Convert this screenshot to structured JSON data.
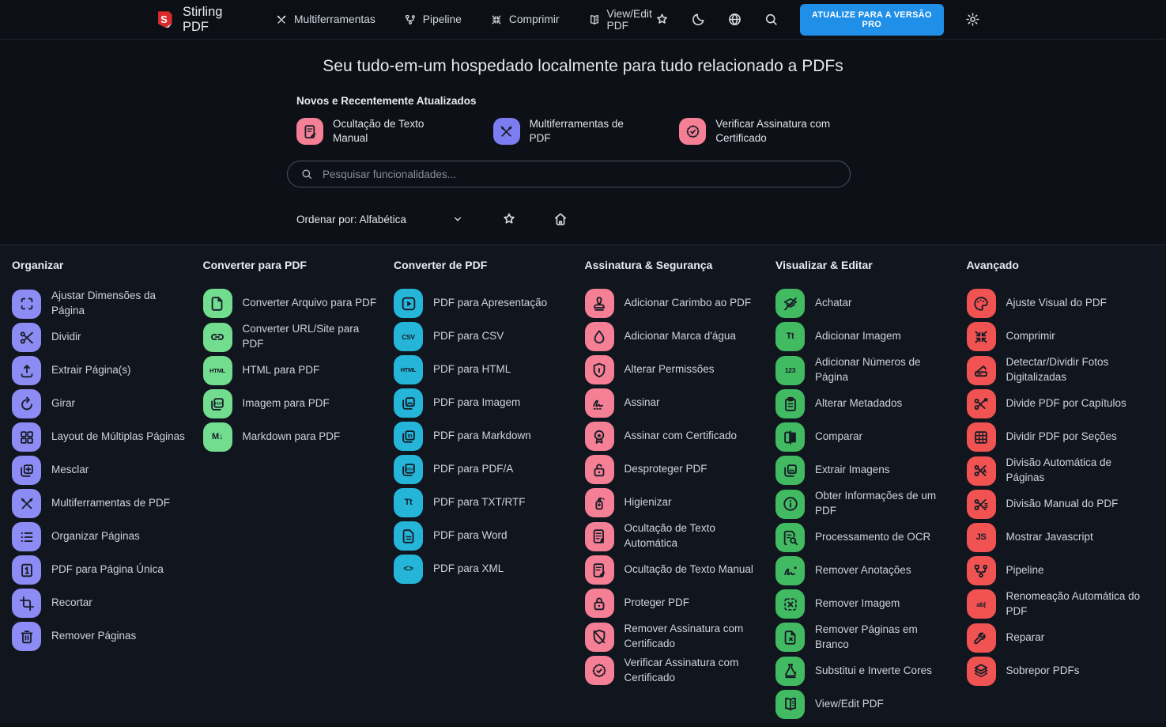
{
  "navbar": {
    "brand": "Stirling PDF",
    "links": [
      {
        "label": "Multiferramentas",
        "icon": "tools"
      },
      {
        "label": "Pipeline",
        "icon": "pipeline"
      },
      {
        "label": "Comprimir",
        "icon": "compress"
      },
      {
        "label": "View/Edit PDF",
        "icon": "book"
      }
    ],
    "action_icons": [
      {
        "name": "favourites",
        "icon": "star"
      },
      {
        "name": "dark-mode",
        "icon": "moon"
      },
      {
        "name": "language",
        "icon": "globe"
      },
      {
        "name": "search",
        "icon": "search"
      }
    ],
    "pro_label": "ATUALIZE PARA A VERSÃO PRO",
    "settings_icon": "gear"
  },
  "hero": {
    "title": "Seu tudo-em-um hospedado localmente para tudo relacionado a PDFs",
    "featured_heading": "Novos e Recentemente Atualizados",
    "featured": [
      {
        "label": "Ocultação de Texto Manual",
        "icon": "doc-pen",
        "color": "#f57f95"
      },
      {
        "label": "Multiferramentas de PDF",
        "icon": "tools",
        "color": "#7d7df2"
      },
      {
        "label": "Verificar Assinatura com Certificado",
        "icon": "badge-check",
        "color": "#f57f95"
      }
    ],
    "search_placeholder": "Pesquisar funcionalidades...",
    "sort_label": "Ordenar por: Alfabética"
  },
  "colors": {
    "accent_blue": "#1f8fe8",
    "organize_purple": "#8c8cf4",
    "convert_to_green": "#72dc8f",
    "convert_from_cyan": "#25b5d8",
    "security_pink": "#f57f95",
    "edit_green": "#41ba61",
    "advanced_red": "#f05351"
  },
  "groups": [
    {
      "title": "Organizar",
      "color": "#8c8cf4",
      "items": [
        {
          "label": "Ajustar Dimensões da Página",
          "icon": "crop-frame"
        },
        {
          "label": "Dividir",
          "icon": "scissors"
        },
        {
          "label": "Extrair Página(s)",
          "icon": "upload"
        },
        {
          "label": "Girar",
          "icon": "rotate"
        },
        {
          "label": "Layout de Múltiplas Páginas",
          "icon": "grid4"
        },
        {
          "label": "Mesclar",
          "icon": "layers-plus"
        },
        {
          "label": "Multiferramentas de PDF",
          "icon": "tools"
        },
        {
          "label": "Organizar Páginas",
          "icon": "list"
        },
        {
          "label": "PDF para Página Única",
          "icon": "page-one"
        },
        {
          "label": "Recortar",
          "icon": "crop-tool"
        },
        {
          "label": "Remover Páginas",
          "icon": "trash"
        }
      ]
    },
    {
      "title": "Converter para PDF",
      "color": "#72dc8f",
      "items": [
        {
          "label": "Converter Arquivo para PDF",
          "icon": "file"
        },
        {
          "label": "Converter URL/Site para PDF",
          "icon": "link"
        },
        {
          "label": "HTML para PDF",
          "icon": "text:HTML"
        },
        {
          "label": "Imagem para PDF",
          "icon": "stack-pdf"
        },
        {
          "label": "Markdown para PDF",
          "icon": "text:M↓"
        }
      ]
    },
    {
      "title": "Converter de PDF",
      "color": "#25b5d8",
      "items": [
        {
          "label": "PDF para Apresentação",
          "icon": "play"
        },
        {
          "label": "PDF para CSV",
          "icon": "text:CSV"
        },
        {
          "label": "PDF para HTML",
          "icon": "text:HTML"
        },
        {
          "label": "PDF para Imagem",
          "icon": "stack-img"
        },
        {
          "label": "PDF para Markdown",
          "icon": "stack-m"
        },
        {
          "label": "PDF para PDF/A",
          "icon": "stack-pdf"
        },
        {
          "label": "PDF para TXT/RTF",
          "icon": "text:Tt"
        },
        {
          "label": "PDF para Word",
          "icon": "file-lines"
        },
        {
          "label": "PDF para XML",
          "icon": "text:<>"
        }
      ]
    },
    {
      "title": "Assinatura & Segurança",
      "color": "#f57f95",
      "items": [
        {
          "label": "Adicionar Carimbo ao PDF",
          "icon": "stamp"
        },
        {
          "label": "Adicionar Marca d'água",
          "icon": "droplet"
        },
        {
          "label": "Alterar Permissões",
          "icon": "shield-lock"
        },
        {
          "label": "Assinar",
          "icon": "signature"
        },
        {
          "label": "Assinar com Certificado",
          "icon": "badge-star"
        },
        {
          "label": "Desproteger PDF",
          "icon": "lock-open"
        },
        {
          "label": "Higienizar",
          "icon": "sanitizer"
        },
        {
          "label": "Ocultação de Texto Automática",
          "icon": "doc-a"
        },
        {
          "label": "Ocultação de Texto Manual",
          "icon": "doc-pen"
        },
        {
          "label": "Proteger PDF",
          "icon": "lock"
        },
        {
          "label": "Remover Assinatura com Certificado",
          "icon": "shield-slash"
        },
        {
          "label": "Verificar Assinatura com Certificado",
          "icon": "badge-check"
        }
      ]
    },
    {
      "title": "Visualizar & Editar",
      "color": "#41ba61",
      "items": [
        {
          "label": "Achatar",
          "icon": "flatten"
        },
        {
          "label": "Adicionar Imagem",
          "icon": "text:Tt"
        },
        {
          "label": "Adicionar Números de Página",
          "icon": "text:123"
        },
        {
          "label": "Alterar Metadados",
          "icon": "clipboard"
        },
        {
          "label": "Comparar",
          "icon": "compare"
        },
        {
          "label": "Extrair Imagens",
          "icon": "stack-img"
        },
        {
          "label": "Obter Informações de um PDF",
          "icon": "info"
        },
        {
          "label": "Processamento de OCR",
          "icon": "doc-search"
        },
        {
          "label": "Remover Anotações",
          "icon": "squiggle"
        },
        {
          "label": "Remover Imagem",
          "icon": "dashed-x"
        },
        {
          "label": "Remover Páginas em Branco",
          "icon": "page-x"
        },
        {
          "label": "Substitui e Inverte Cores",
          "icon": "flask"
        },
        {
          "label": "View/Edit PDF",
          "icon": "book"
        }
      ]
    },
    {
      "title": "Avançado",
      "color": "#f05351",
      "items": [
        {
          "label": "Ajuste Visual do PDF",
          "icon": "palette"
        },
        {
          "label": "Comprimir",
          "icon": "compress"
        },
        {
          "label": "Detectar/Dividir Fotos Digitalizadas",
          "icon": "scanner"
        },
        {
          "label": "Divide PDF por Capítulos",
          "icon": "scissors-tag"
        },
        {
          "label": "Dividir PDF por Seções",
          "icon": "grid9"
        },
        {
          "label": "Divisão Automática de Páginas",
          "icon": "scissors-a"
        },
        {
          "label": "Divisão Manual do PDF",
          "icon": "scissors-lines"
        },
        {
          "label": "Mostrar Javascript",
          "icon": "text:JS"
        },
        {
          "label": "Pipeline",
          "icon": "pipeline"
        },
        {
          "label": "Renomeação Automática do PDF",
          "icon": "text:ab|"
        },
        {
          "label": "Reparar",
          "icon": "wrench"
        },
        {
          "label": "Sobrepor PDFs",
          "icon": "overlay"
        }
      ]
    }
  ]
}
